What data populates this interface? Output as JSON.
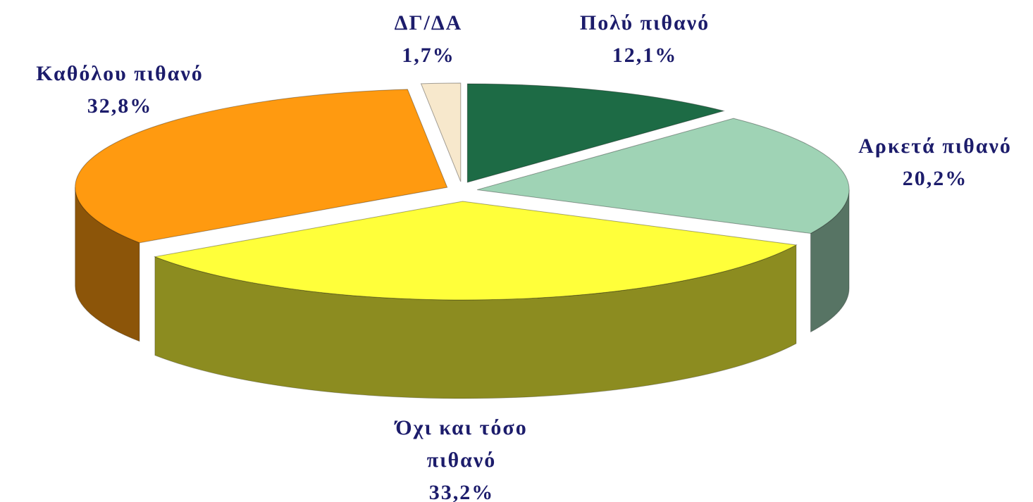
{
  "chart_data": {
    "type": "pie3d",
    "categories": [
      "Πολύ πιθανό",
      "Αρκετά πιθανό",
      "Όχι και τόσο πιθανό",
      "Καθόλου πιθανό",
      "ΔΓ/ΔΑ"
    ],
    "values": [
      12.1,
      20.2,
      33.2,
      32.8,
      1.7
    ],
    "value_labels": [
      "12,1%",
      "20,2%",
      "33,2%",
      "32,8%",
      "1,7%"
    ],
    "colors": [
      "#1d6b45",
      "#9fd3b5",
      "#ffff3a",
      "#ff9a10",
      "#f7e8cc"
    ]
  }
}
